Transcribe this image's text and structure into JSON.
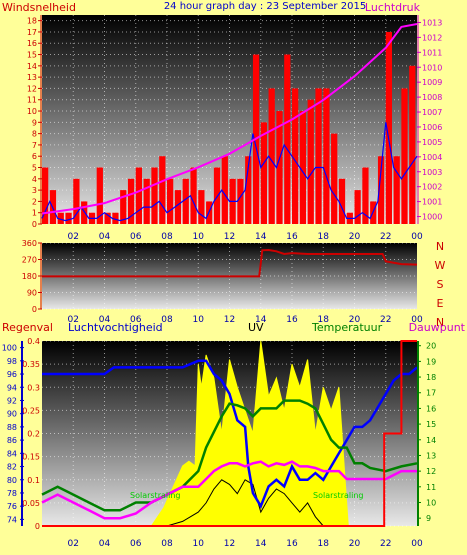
{
  "header": {
    "left_label": "Windsnelheid",
    "title": "24 hour graph day : 23 September 2015",
    "right_label": "Luchtdruk"
  },
  "colors": {
    "background": "#ffff99",
    "wind": "#ff0000",
    "wind_avg": "#0000ff",
    "pressure": "#ff00ff",
    "direction": "#cc0000",
    "rain": "#ff0000",
    "humidity": "#0000ff",
    "uv": "#ffff00",
    "temperature": "#008000",
    "dewpoint": "#ff00ff",
    "solar": "#000000",
    "axis_red": "#cc0000",
    "axis_blue": "#0000cc",
    "axis_green": "#008000"
  },
  "chart_data": [
    {
      "type": "line",
      "panel": "wind_pressure",
      "x_ticks": [
        "02",
        "04",
        "06",
        "08",
        "10",
        "12",
        "14",
        "16",
        "18",
        "20",
        "22",
        "00"
      ],
      "y_left": {
        "ticks": [
          "0",
          "1",
          "2",
          "3",
          "4",
          "5",
          "6",
          "7",
          "8",
          "9",
          "10",
          "11",
          "12",
          "13",
          "14",
          "15",
          "16",
          "17",
          "18"
        ],
        "ylim": [
          0,
          18.5
        ]
      },
      "y_right": {
        "ticks": [
          "1000",
          "1001",
          "1002",
          "1003",
          "1004",
          "1005",
          "1006",
          "1007",
          "1008",
          "1009",
          "1010",
          "1011",
          "1012",
          "1013"
        ],
        "ylim": [
          999.5,
          1013.5
        ]
      },
      "series": [
        {
          "axis": "left",
          "style": "bars",
          "color_key": "wind",
          "x": [
            0.5,
            1,
            1.5,
            2,
            2.5,
            3,
            3.5,
            4,
            4.5,
            5,
            5.5,
            6,
            6.5,
            7,
            7.5,
            8,
            8.5,
            9,
            9.5,
            10,
            10.5,
            11,
            11.5,
            12,
            12.5,
            13,
            13.5,
            14,
            14.5,
            15,
            15.5,
            16,
            16.5,
            17,
            17.5,
            18,
            18.5,
            19,
            19.5,
            20,
            20.5,
            21,
            21.5,
            22,
            22.5,
            23,
            23.5,
            24
          ],
          "y": [
            5,
            3,
            1,
            1,
            4,
            2,
            1,
            5,
            1,
            1,
            3,
            4,
            5,
            4,
            5,
            6,
            4,
            3,
            4,
            5,
            3,
            2,
            5,
            6,
            4,
            4,
            6,
            15,
            9,
            12,
            10,
            15,
            12,
            10,
            11,
            12,
            12,
            8,
            4,
            1,
            3,
            5,
            2,
            6,
            17,
            6,
            12,
            14
          ]
        },
        {
          "axis": "left",
          "style": "line",
          "color_key": "wind_avg",
          "x": [
            0,
            0.5,
            1,
            1.5,
            2,
            2.5,
            3,
            3.5,
            4,
            4.5,
            5,
            5.5,
            6,
            6.5,
            7,
            7.5,
            8,
            8.5,
            9,
            9.5,
            10,
            10.5,
            11,
            11.5,
            12,
            12.5,
            13,
            13.5,
            14,
            14.5,
            15,
            15.5,
            16,
            16.5,
            17,
            17.5,
            18,
            18.5,
            19,
            19.5,
            20,
            20.5,
            21,
            21.5,
            22,
            22.5,
            23,
            23.5,
            24
          ],
          "y": [
            0.5,
            2,
            0.5,
            0.3,
            0.5,
            1.5,
            0.5,
            0.5,
            1,
            0.5,
            0.3,
            0.5,
            1,
            1.5,
            1.5,
            2,
            1,
            1.5,
            2,
            2.5,
            1,
            0.5,
            2,
            3,
            2,
            2,
            3,
            8,
            5,
            6,
            5,
            7,
            6,
            5,
            4,
            5,
            5,
            3,
            2,
            0.5,
            0.5,
            1,
            0.5,
            2,
            9,
            5,
            4,
            5,
            6
          ]
        },
        {
          "axis": "right",
          "style": "line",
          "color_key": "pressure",
          "x": [
            0,
            2,
            4,
            6,
            8,
            10,
            12,
            14,
            16,
            18,
            20,
            22,
            23,
            24
          ],
          "y": [
            1000.2,
            1000.5,
            1000.9,
            1001.6,
            1002.5,
            1003.3,
            1004.2,
            1005.4,
            1006.5,
            1007.8,
            1009.4,
            1011.3,
            1012.7,
            1012.9
          ]
        }
      ]
    },
    {
      "type": "line",
      "panel": "wind_direction",
      "x_ticks": [
        "02",
        "04",
        "06",
        "08",
        "10",
        "12",
        "14",
        "16",
        "18",
        "20",
        "22",
        "00"
      ],
      "y_ticks": [
        "0",
        "90",
        "180",
        "270",
        "360"
      ],
      "ylim": [
        0,
        360
      ],
      "direction_labels": [
        "N",
        "W",
        "S",
        "E",
        "N"
      ],
      "series": [
        {
          "color_key": "direction",
          "x": [
            0,
            13.9,
            14.1,
            14.5,
            15,
            15.5,
            16,
            17,
            18,
            19,
            20,
            21,
            21.8,
            22,
            23,
            24
          ],
          "y": [
            178,
            178,
            320,
            322,
            315,
            300,
            305,
            300,
            300,
            300,
            300,
            300,
            300,
            260,
            245,
            242
          ]
        }
      ]
    },
    {
      "type": "line",
      "panel": "weather",
      "headers": [
        "Regenval",
        "Luchtvochtigheid",
        "UV",
        "Temperatuur",
        "Dauwpunt"
      ],
      "x_ticks": [
        "02",
        "04",
        "06",
        "08",
        "10",
        "12",
        "14",
        "16",
        "18",
        "20",
        "22",
        "00"
      ],
      "y_rain": {
        "ticks": [
          "0",
          "0.05",
          "0.1",
          "0.15",
          "0.2",
          "0.25",
          "0.3",
          "0.35",
          "0.4"
        ],
        "ylim": [
          0,
          0.4
        ]
      },
      "y_humidity": {
        "ticks": [
          "74",
          "76",
          "78",
          "80",
          "82",
          "84",
          "86",
          "88",
          "90",
          "92",
          "94",
          "96",
          "98",
          "100"
        ],
        "ylim": [
          73,
          101
        ]
      },
      "y_temperature": {
        "ticks": [
          "9",
          "10",
          "11",
          "12",
          "13",
          "14",
          "15",
          "16",
          "17",
          "18",
          "19",
          "20"
        ],
        "ylim": [
          8.5,
          20.3
        ]
      },
      "annotations": [
        "Solarstraling",
        "Solarstraling"
      ],
      "series": [
        {
          "name": "UV",
          "style": "area",
          "color_key": "uv",
          "x": [
            7,
            7.4,
            7.8,
            8.2,
            8.6,
            9,
            9.4,
            9.8,
            10,
            10.2,
            10.5,
            11,
            11.5,
            12,
            12.5,
            13,
            13.5,
            14,
            14.5,
            15,
            15.5,
            16,
            16.5,
            17,
            17.5,
            18,
            18.5,
            19,
            19.4,
            19.6
          ],
          "y": [
            0,
            0.02,
            0.04,
            0.07,
            0.1,
            0.13,
            0.14,
            0.13,
            0.35,
            0.3,
            0.37,
            0.32,
            0.2,
            0.36,
            0.3,
            0.25,
            0.2,
            0.4,
            0.28,
            0.32,
            0.25,
            0.35,
            0.3,
            0.36,
            0.2,
            0.3,
            0.25,
            0.3,
            0.1,
            0
          ]
        },
        {
          "name": "Solarstraling",
          "style": "line",
          "color_key": "solar",
          "x": [
            7,
            8,
            9,
            10,
            10.5,
            11,
            11.5,
            12,
            12.5,
            13,
            13.5,
            14,
            14.5,
            15,
            15.5,
            16,
            16.5,
            17,
            17.5,
            18
          ],
          "y": [
            0,
            0,
            0.01,
            0.03,
            0.05,
            0.08,
            0.1,
            0.09,
            0.07,
            0.1,
            0.09,
            0.03,
            0.06,
            0.08,
            0.07,
            0.05,
            0.03,
            0.05,
            0.02,
            0
          ]
        },
        {
          "name": "Luchtvochtigheid",
          "axis": "humidity",
          "style": "line",
          "color_key": "humidity",
          "x": [
            0,
            1,
            2,
            3,
            4,
            4.6,
            5,
            6,
            7,
            8,
            9,
            10,
            10.5,
            11,
            11.5,
            12,
            12.5,
            13,
            13.2,
            13.5,
            14,
            14.5,
            15,
            15.5,
            16,
            16.5,
            17,
            17.5,
            18,
            18.5,
            19,
            19.5,
            20,
            20.5,
            21,
            21.5,
            22,
            22.5,
            23,
            23.5,
            24
          ],
          "y": [
            96,
            96,
            96,
            96,
            96,
            97,
            97,
            97,
            97,
            97,
            97,
            98,
            98,
            96,
            95,
            93,
            89,
            88,
            82,
            78,
            76,
            79,
            80,
            79,
            82,
            80,
            80,
            81,
            80,
            82,
            84,
            86,
            88,
            88,
            89,
            91,
            93,
            95,
            96,
            96,
            97
          ]
        },
        {
          "name": "Temperatuur",
          "axis": "temperature",
          "style": "line",
          "color_key": "temperature",
          "x": [
            0,
            1,
            2,
            3,
            4,
            5,
            6,
            7,
            8,
            9,
            10,
            10.5,
            11,
            11.5,
            12,
            12.5,
            13,
            13.5,
            14,
            14.5,
            15,
            15.5,
            16,
            16.5,
            17,
            17.5,
            18,
            18.5,
            19,
            19.5,
            20,
            20.5,
            21,
            22,
            23,
            24
          ],
          "y": [
            10.5,
            11,
            10.5,
            10,
            9.5,
            9.5,
            10,
            10,
            10.5,
            11,
            12,
            13.5,
            14.5,
            15.5,
            16.3,
            16.2,
            16,
            15.5,
            16,
            16,
            16,
            16.5,
            16.5,
            16.5,
            16.3,
            16,
            15,
            14,
            13.5,
            13.5,
            12.5,
            12.5,
            12.2,
            12,
            12.3,
            12.5
          ]
        },
        {
          "name": "Dauwpunt",
          "axis": "temperature",
          "style": "line",
          "color_key": "dewpoint",
          "x": [
            0,
            1,
            2,
            3,
            4,
            5,
            6,
            7,
            8,
            9,
            10,
            10.5,
            11,
            11.5,
            12,
            12.5,
            13,
            13.5,
            14,
            14.5,
            15,
            15.5,
            16,
            16.5,
            17,
            17.5,
            18,
            18.5,
            19,
            19.5,
            20,
            20.5,
            21,
            22,
            23,
            24
          ],
          "y": [
            10,
            10.5,
            10,
            9.5,
            9,
            9,
            9.3,
            10,
            10.5,
            11,
            11,
            11.5,
            12,
            12.3,
            12.5,
            12.5,
            12.3,
            12.5,
            12.6,
            12.3,
            12.5,
            12.4,
            12.6,
            12.3,
            12.3,
            12.2,
            12,
            12,
            12,
            11.5,
            11.5,
            11.5,
            11.5,
            11.5,
            12,
            12
          ]
        },
        {
          "name": "Regenval",
          "axis": "rain",
          "style": "step",
          "color_key": "rain",
          "x": [
            0,
            21.9,
            21.9,
            23,
            23,
            24
          ],
          "y": [
            0,
            0,
            0.2,
            0.2,
            0.4,
            0.4
          ]
        }
      ]
    }
  ]
}
